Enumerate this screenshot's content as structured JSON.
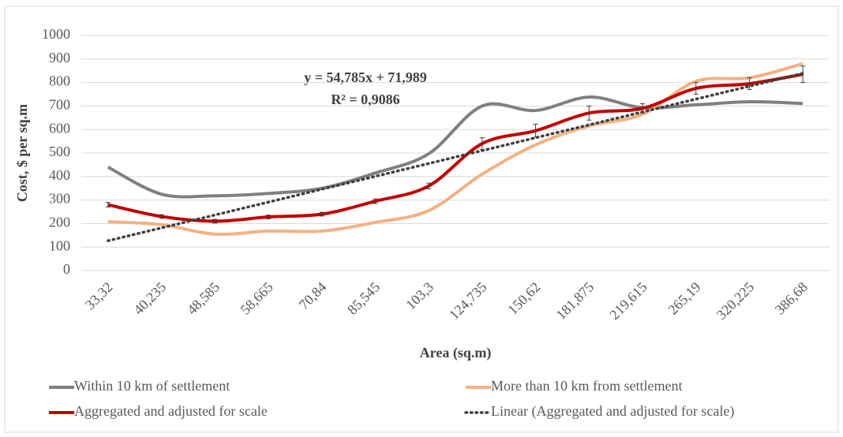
{
  "chart_data": {
    "type": "line",
    "categories": [
      "33,32",
      "40,235",
      "48,585",
      "58,665",
      "70,84",
      "85,545",
      "103,3",
      "124,735",
      "150,62",
      "181,875",
      "219,615",
      "265,19",
      "320,225",
      "386,68"
    ],
    "xlabel": "Area (sq.m)",
    "ylabel": "Cost, $ per sq.m",
    "ylim": [
      0,
      1000
    ],
    "yticks": [
      0,
      100,
      200,
      300,
      400,
      500,
      600,
      700,
      800,
      900,
      1000
    ],
    "grid": true,
    "legend": "bottom",
    "series": [
      {
        "name": "Within 10 km of settlement",
        "color": "#808080",
        "values": [
          440,
          325,
          318,
          328,
          350,
          415,
          497,
          700,
          681,
          738,
          693,
          705,
          718,
          711
        ]
      },
      {
        "name": "More than 10 km from settlement",
        "color": "#f4b183",
        "values": [
          208,
          195,
          155,
          168,
          168,
          205,
          255,
          410,
          535,
          615,
          665,
          805,
          820,
          880
        ]
      },
      {
        "name": "Aggregated and adjusted for scale",
        "color": "#c00000",
        "values": [
          280,
          230,
          210,
          228,
          240,
          295,
          360,
          540,
          595,
          670,
          690,
          775,
          795,
          835
        ],
        "errors": [
          10,
          8,
          8,
          8,
          8,
          10,
          12,
          25,
          28,
          30,
          20,
          25,
          25,
          35
        ]
      }
    ],
    "trendline": {
      "name": "Linear (Aggregated and adjusted for scale)",
      "color": "#404040",
      "slope": 54.785,
      "intercept": 71.989,
      "equation_label": "y = 54,785x + 71,989",
      "r2_label": "R² = 0,9086"
    }
  }
}
